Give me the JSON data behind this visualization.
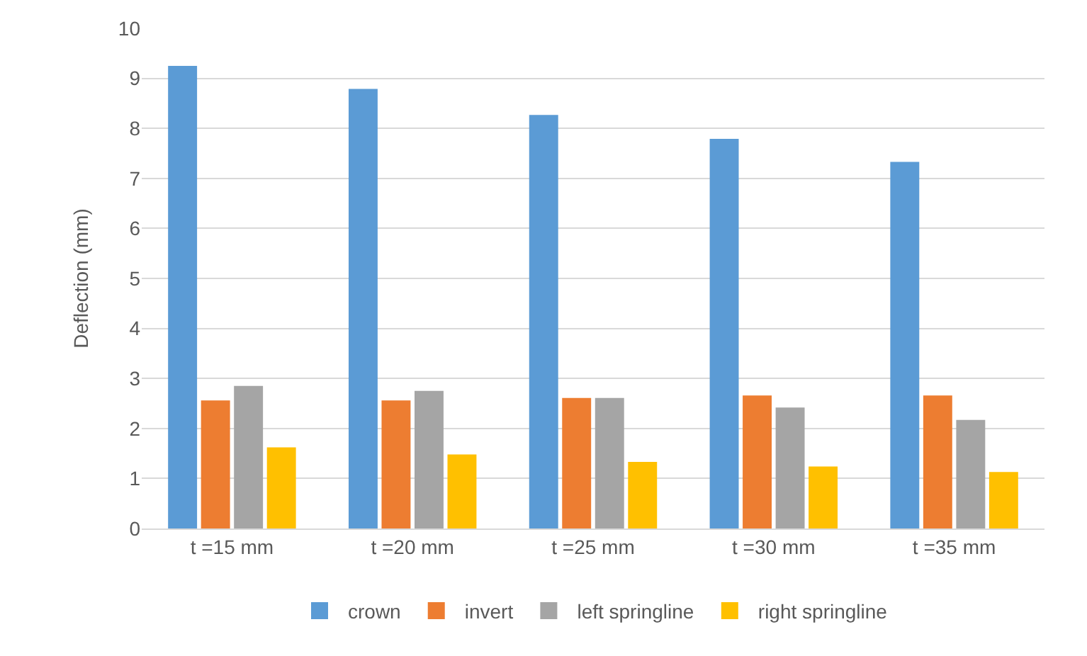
{
  "chart_data": {
    "type": "bar",
    "ylabel": "Deflection (mm)",
    "categories": [
      "t =15 mm",
      "t =20 mm",
      "t =25 mm",
      "t =30 mm",
      "t =35 mm"
    ],
    "series": [
      {
        "name": "crown",
        "color": "#5b9bd5",
        "values": [
          9.25,
          8.79,
          8.27,
          7.79,
          7.33
        ]
      },
      {
        "name": "invert",
        "color": "#ed7d31",
        "values": [
          2.56,
          2.56,
          2.61,
          2.66,
          2.66
        ]
      },
      {
        "name": "left springline",
        "color": "#a5a5a5",
        "values": [
          2.85,
          2.75,
          2.61,
          2.42,
          2.17
        ]
      },
      {
        "name": "right springline",
        "color": "#ffc000",
        "values": [
          1.62,
          1.48,
          1.33,
          1.24,
          1.13
        ]
      }
    ],
    "ylim": [
      0,
      10
    ],
    "yticks": [
      0,
      1,
      2,
      3,
      4,
      5,
      6,
      7,
      8,
      9,
      10
    ],
    "grid": "y",
    "legend": "bottom"
  }
}
